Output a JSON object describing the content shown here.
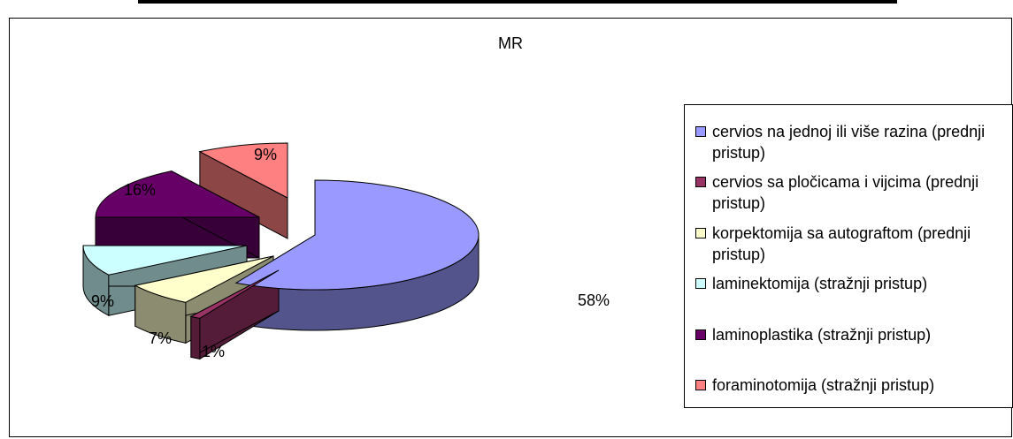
{
  "chart_data": {
    "type": "pie",
    "title": "MR",
    "legend_position": "right",
    "categories": [
      "cervios na jednoj ili više razina (prednji pristup)",
      "cervios sa pločicama i vijcima (prednji pristup)",
      "korpektomija sa autograftom (prednji pristup)",
      "laminektomija (stražnji pristup)",
      "laminoplastika (stražnji pristup)",
      "foraminotomija (stražnji pristup)"
    ],
    "values": [
      58,
      1,
      7,
      9,
      16,
      9
    ],
    "data_labels": [
      "58%",
      "1%",
      "7%",
      "9%",
      "16%",
      "9%"
    ],
    "colors": [
      "#9999FF",
      "#993366",
      "#FFFFCC",
      "#CCFFFF",
      "#660066",
      "#FF8080"
    ]
  }
}
